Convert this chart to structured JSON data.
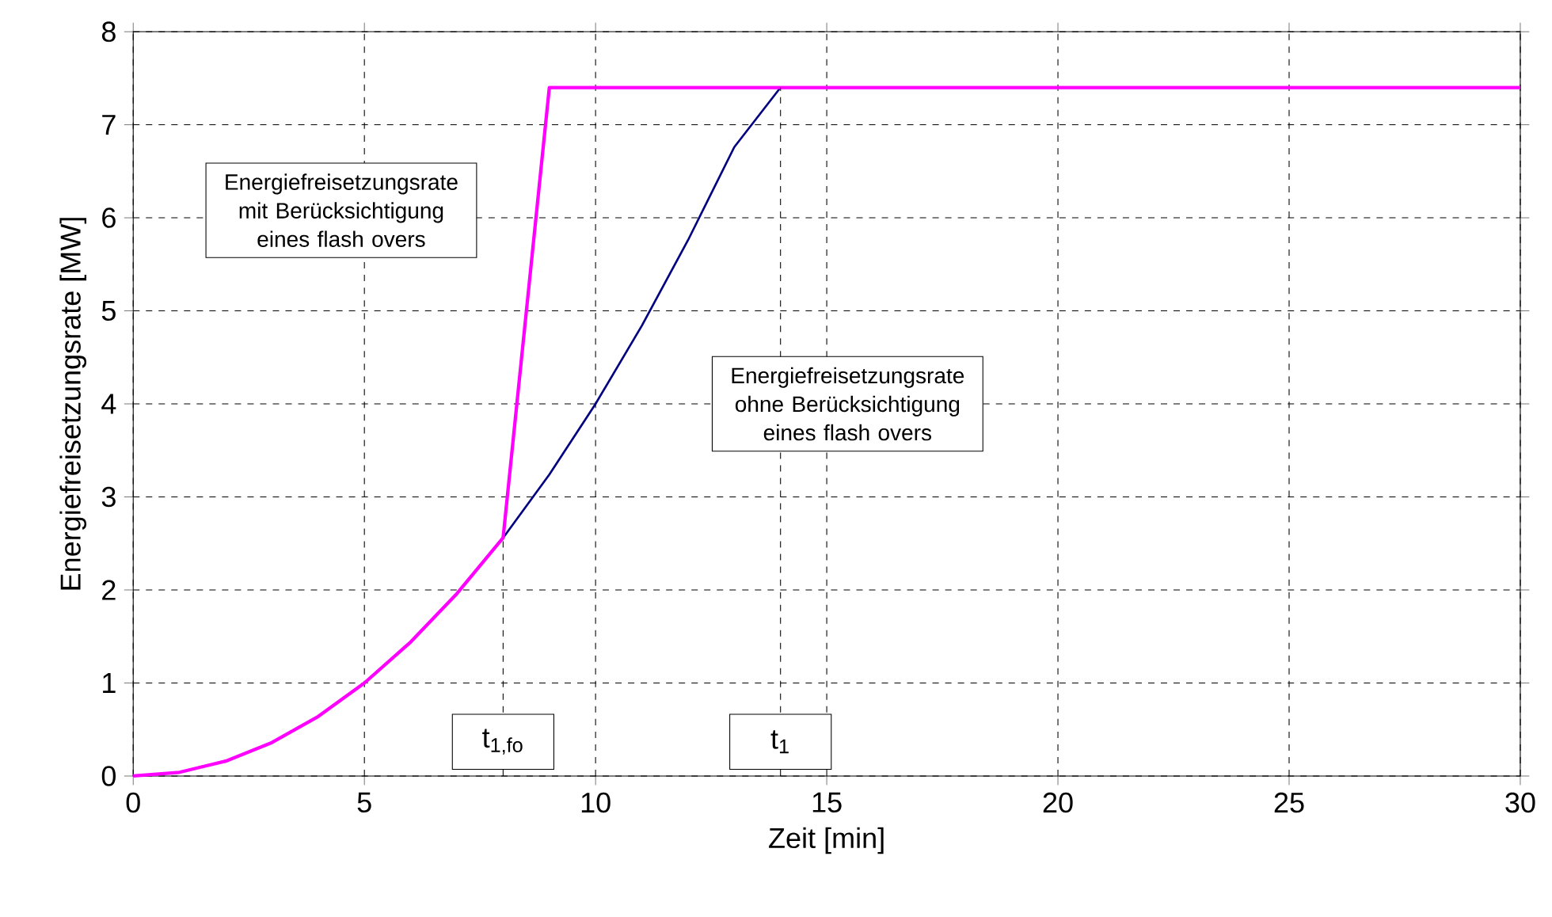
{
  "chart_data": {
    "type": "line",
    "xlabel": "Zeit [min]",
    "ylabel": "Energiefreisetzungsrate [MW]",
    "xlim": [
      0,
      30
    ],
    "ylim": [
      0,
      8
    ],
    "xticks": [
      0,
      5,
      10,
      15,
      20,
      25,
      30
    ],
    "yticks": [
      0,
      1,
      2,
      3,
      4,
      5,
      6,
      7,
      8
    ],
    "grid": true,
    "marker": "none",
    "line_style": "solid",
    "series": [
      {
        "color": "#000080",
        "x": [
          8,
          9,
          10,
          11,
          12,
          13,
          14
        ],
        "values": [
          2.56,
          3.24,
          4.0,
          4.84,
          5.76,
          6.76,
          7.4
        ]
      },
      {
        "color": "#ff00ff",
        "x": [
          0,
          1,
          2,
          3,
          4,
          5,
          6,
          7,
          8,
          9,
          30
        ],
        "values": [
          0,
          0.04,
          0.16,
          0.36,
          0.64,
          1.0,
          1.44,
          1.96,
          2.56,
          7.4,
          7.4
        ]
      }
    ],
    "ref_lines": [
      {
        "axis": "x",
        "value": 8,
        "label": "t$_{1,fo}$",
        "line_style": "dashed",
        "color": "#000000"
      },
      {
        "axis": "x",
        "value": 14,
        "label": "t$_{1}$",
        "line_style": "dashed",
        "color": "#000000"
      }
    ],
    "annotations": [
      "Energiefreisetzungsrate mit Berücksichtigung eines flash overs",
      "Energiefreisetzungsrate ohne Berücksichtigung eines flash overs"
    ]
  }
}
